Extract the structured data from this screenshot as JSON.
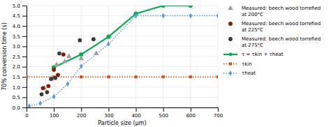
{
  "chart_data": {
    "type": "line",
    "xlabel": "Particle size (μm)",
    "ylabel": "70% conversion time (s)",
    "xlim": [
      0,
      700
    ],
    "ylim": [
      0,
      5.0
    ],
    "xticks": [
      0,
      100,
      200,
      300,
      400,
      500,
      600,
      700
    ],
    "yticks": [
      {
        "value": 0.0,
        "label": "0.0"
      },
      0.5,
      {
        "value": 1.0,
        "label": "1.0"
      },
      1.5,
      {
        "value": 2.0,
        "label": "2.0"
      },
      2.5,
      {
        "value": 3.0,
        "label": "3.0"
      },
      3.5,
      {
        "value": 4.0,
        "label": "4.0"
      },
      4.5,
      {
        "value": 5.0,
        "label": "5.0"
      }
    ],
    "grid": true,
    "legend": "right",
    "series": [
      {
        "name": "Measured: beech wood torrefied\nat 200°C",
        "type": "scatter",
        "color": "#a0a0a0",
        "marker": "triangle",
        "x": [
          65,
          90,
          110,
          140,
          155,
          200,
          255
        ],
        "values": [
          0.95,
          1.4,
          2.1,
          2.25,
          2.5,
          2.4,
          2.65
        ]
      },
      {
        "name": "Measured: beech wood torrefied\nat 225°C",
        "type": "scatter",
        "color": "#8B1800",
        "marker": "circle",
        "x": [
          60,
          80,
          100,
          115,
          135
        ],
        "values": [
          0.95,
          1.05,
          1.85,
          1.6,
          2.6
        ]
      },
      {
        "name": "Measured: beech wood torrefied\nat 275°C",
        "type": "scatter",
        "color": "#3a3a3a",
        "marker": "circle",
        "x": [
          55,
          75,
          90,
          105,
          120,
          195,
          245
        ],
        "values": [
          0.65,
          0.75,
          1.4,
          1.45,
          2.65,
          3.3,
          3.35
        ]
      },
      {
        "name": "τ = τkin + τheat",
        "type": "line",
        "color": "#00b050",
        "marker": "circle",
        "line_style": "solid",
        "x": [
          100,
          200,
          300,
          400,
          500,
          600
        ],
        "values": [
          1.97,
          2.6,
          3.47,
          4.6,
          5.0,
          5.0
        ]
      },
      {
        "name": "τkin",
        "type": "line",
        "color": "#e05010",
        "marker": "square",
        "line_style": "dotted",
        "x": [
          0,
          100,
          200,
          300,
          400,
          500,
          600,
          700
        ],
        "values": [
          1.5,
          1.5,
          1.5,
          1.5,
          1.5,
          1.5,
          1.5,
          1.5
        ]
      },
      {
        "name": "τheat",
        "type": "line",
        "color": "#5b9bd5",
        "marker": "diamond",
        "line_style": "dotted",
        "x": [
          10,
          50,
          100,
          150,
          200,
          300,
          400,
          500,
          600,
          700
        ],
        "values": [
          0.07,
          0.2,
          0.53,
          1.15,
          2.02,
          3.12,
          4.5,
          4.5,
          4.5,
          4.5
        ]
      }
    ]
  }
}
